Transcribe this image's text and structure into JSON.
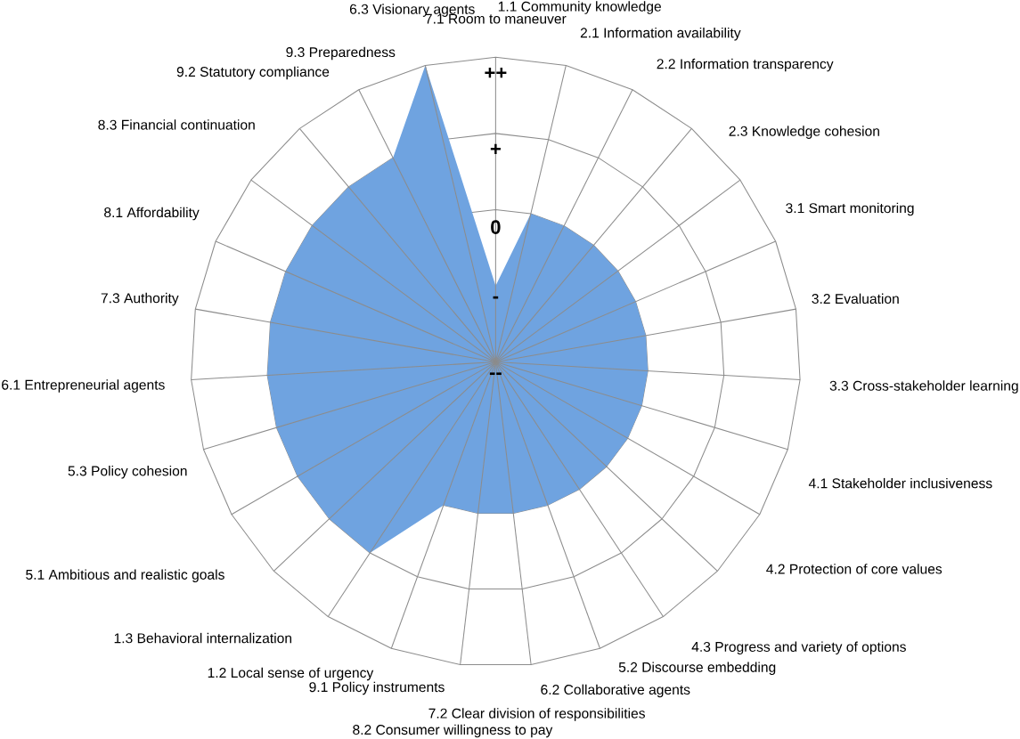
{
  "chart_data": {
    "type": "radar",
    "categories": [
      "7.1 Room to maneuver",
      "1.1 Community knowledge",
      "2.1 Information availability",
      "2.2 Information transparency",
      "2.3 Knowledge cohesion",
      "3.1 Smart monitoring",
      "3.2 Evaluation",
      "3.3 Cross-stakeholder learning",
      "4.1 Stakeholder inclusiveness",
      "4.2 Protection of core values",
      "4.3 Progress and variety of options",
      "5.2 Discourse embedding",
      "6.2 Collaborative agents",
      "7.2 Clear division of responsibilities",
      "8.2 Consumer willingness to pay",
      "9.1 Policy instruments",
      "1.2 Local sense of urgency",
      "1.3 Behavioral internalization",
      "5.1 Ambitious and realistic goals",
      "5.3 Policy cohesion",
      "6.1 Entrepreneurial agents",
      "7.3 Authority",
      "8.1 Affordability",
      "8.3 Financial continuation",
      "9.2 Statutory compliance",
      "9.3 Preparedness",
      "6.3 Visionary agents"
    ],
    "series": [
      {
        "color": "#6fa3e0",
        "values": [
          -1,
          0,
          0,
          0,
          0,
          0,
          0,
          0,
          0,
          0,
          0,
          0,
          0,
          0,
          0,
          0,
          1,
          1,
          1,
          1,
          1,
          1,
          1,
          1,
          1,
          1,
          2
        ]
      }
    ],
    "ylim": [
      -2,
      2
    ],
    "yticks": [
      {
        "value": -2,
        "label": "--"
      },
      {
        "value": -1,
        "label": "-"
      },
      0,
      {
        "value": 1,
        "label": "+"
      },
      {
        "value": 2,
        "label": "++"
      }
    ],
    "grid": true
  }
}
